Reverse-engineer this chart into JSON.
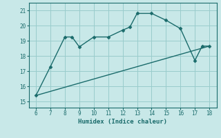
{
  "xlabel": "Humidex (Indice chaleur)",
  "background_color": "#c8e8e8",
  "grid_color": "#99cccc",
  "line_color": "#1a6b6b",
  "line1_x": [
    6,
    7,
    8,
    8.5,
    9,
    10,
    11,
    12,
    12.5,
    13,
    14,
    15,
    16,
    17,
    17.5,
    18
  ],
  "line1_y": [
    15.4,
    17.3,
    19.25,
    19.25,
    18.6,
    19.25,
    19.25,
    19.7,
    19.9,
    20.8,
    20.8,
    20.35,
    19.8,
    17.7,
    18.65,
    18.65
  ],
  "line2_x": [
    6,
    18
  ],
  "line2_y": [
    15.4,
    18.65
  ],
  "xlim": [
    5.5,
    18.5
  ],
  "ylim": [
    14.6,
    21.5
  ],
  "xticks": [
    6,
    7,
    8,
    9,
    10,
    11,
    12,
    13,
    14,
    15,
    16,
    17,
    18
  ],
  "yticks": [
    15,
    16,
    17,
    18,
    19,
    20,
    21
  ],
  "markersize": 2.5,
  "linewidth": 1.0
}
